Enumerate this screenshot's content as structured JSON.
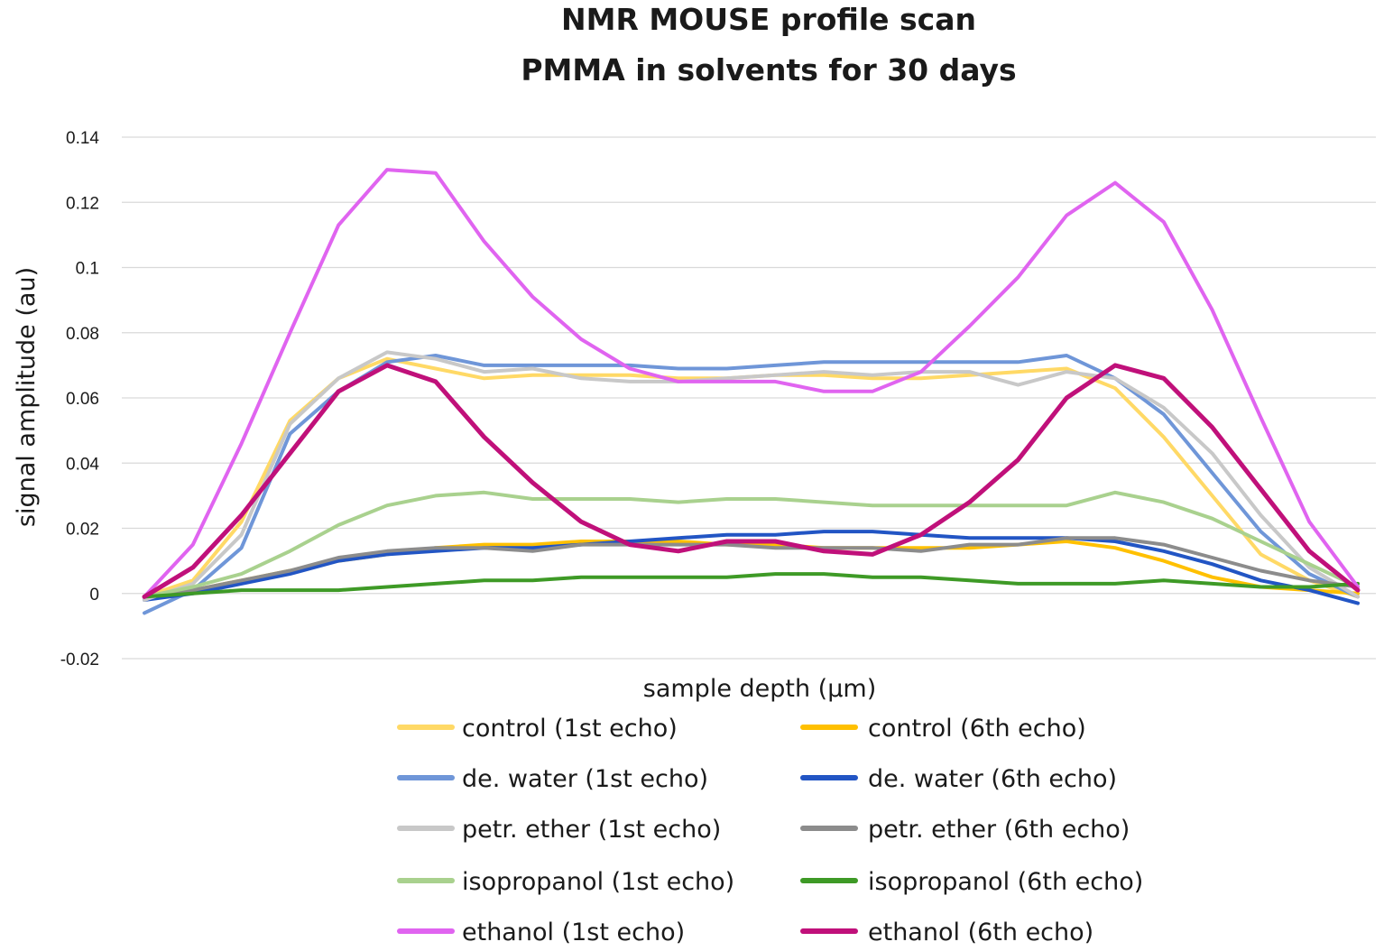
{
  "chart_data": {
    "type": "line",
    "title": [
      "NMR MOUSE profile scan",
      "PMMA in solvents for 30 days"
    ],
    "xlabel": "sample depth (μm)",
    "ylabel": "signal amplitude (au)",
    "ylim": [
      -0.02,
      0.14
    ],
    "yticks": [
      "0.14",
      "0.12",
      "0.1",
      "0.08",
      "0.06",
      "0.04",
      "0.02",
      "0",
      "-0.02"
    ],
    "ytick_values": [
      0.14,
      0.12,
      0.1,
      0.08,
      0.06,
      0.04,
      0.02,
      0,
      -0.02
    ],
    "x": [
      1,
      2,
      3,
      4,
      5,
      6,
      7,
      8,
      9,
      10,
      11,
      12,
      13,
      14,
      15,
      16,
      17,
      18,
      19,
      20,
      21,
      22,
      23,
      24,
      25,
      26
    ],
    "grid": true,
    "legend_position": "bottom",
    "series": [
      {
        "name": "control (1st echo)",
        "color": "#ffd966",
        "values": [
          -0.001,
          0.004,
          0.022,
          0.053,
          0.066,
          0.072,
          0.069,
          0.066,
          0.067,
          0.067,
          0.067,
          0.066,
          0.066,
          0.067,
          0.067,
          0.066,
          0.066,
          0.067,
          0.068,
          0.069,
          0.063,
          0.048,
          0.03,
          0.012,
          0.004,
          -0.001
        ]
      },
      {
        "name": "control (6th echo)",
        "color": "#ffc000",
        "values": [
          -0.001,
          0.001,
          0.004,
          0.007,
          0.01,
          0.012,
          0.014,
          0.015,
          0.015,
          0.016,
          0.016,
          0.016,
          0.015,
          0.015,
          0.014,
          0.014,
          0.014,
          0.014,
          0.015,
          0.016,
          0.014,
          0.01,
          0.005,
          0.002,
          0.001,
          0.0
        ]
      },
      {
        "name": "de. water (1st echo)",
        "color": "#6f96d8",
        "values": [
          -0.006,
          0.001,
          0.014,
          0.049,
          0.062,
          0.071,
          0.073,
          0.07,
          0.07,
          0.07,
          0.07,
          0.069,
          0.069,
          0.07,
          0.071,
          0.071,
          0.071,
          0.071,
          0.071,
          0.073,
          0.066,
          0.055,
          0.037,
          0.019,
          0.006,
          -0.001
        ]
      },
      {
        "name": "de. water (6th echo)",
        "color": "#2255c4",
        "values": [
          -0.002,
          0.0,
          0.003,
          0.006,
          0.01,
          0.012,
          0.013,
          0.014,
          0.014,
          0.015,
          0.016,
          0.017,
          0.018,
          0.018,
          0.019,
          0.019,
          0.018,
          0.017,
          0.017,
          0.017,
          0.016,
          0.013,
          0.009,
          0.004,
          0.001,
          -0.003
        ]
      },
      {
        "name": "petr. ether (1st echo)",
        "color": "#c8c8c8",
        "values": [
          -0.002,
          0.003,
          0.018,
          0.052,
          0.066,
          0.074,
          0.072,
          0.068,
          0.069,
          0.066,
          0.065,
          0.065,
          0.066,
          0.067,
          0.068,
          0.067,
          0.068,
          0.068,
          0.064,
          0.068,
          0.066,
          0.057,
          0.043,
          0.024,
          0.008,
          -0.001
        ]
      },
      {
        "name": "petr. ether (6th echo)",
        "color": "#8c8c8c",
        "values": [
          -0.001,
          0.001,
          0.004,
          0.007,
          0.011,
          0.013,
          0.014,
          0.014,
          0.013,
          0.015,
          0.015,
          0.015,
          0.015,
          0.014,
          0.014,
          0.014,
          0.013,
          0.015,
          0.015,
          0.017,
          0.017,
          0.015,
          0.011,
          0.007,
          0.004,
          0.002
        ]
      },
      {
        "name": "isopropanol (1st echo)",
        "color": "#a9d18e",
        "values": [
          -0.001,
          0.002,
          0.006,
          0.013,
          0.021,
          0.027,
          0.03,
          0.031,
          0.029,
          0.029,
          0.029,
          0.028,
          0.029,
          0.029,
          0.028,
          0.027,
          0.027,
          0.027,
          0.027,
          0.027,
          0.031,
          0.028,
          0.023,
          0.016,
          0.009,
          0.002
        ]
      },
      {
        "name": "isopropanol (6th echo)",
        "color": "#3e9a26",
        "values": [
          -0.001,
          -0.0,
          0.001,
          0.001,
          0.001,
          0.002,
          0.003,
          0.004,
          0.004,
          0.005,
          0.005,
          0.005,
          0.005,
          0.006,
          0.006,
          0.005,
          0.005,
          0.004,
          0.003,
          0.003,
          0.003,
          0.004,
          0.003,
          0.002,
          0.002,
          0.003
        ]
      },
      {
        "name": "ethanol (1st echo)",
        "color": "#e064f0",
        "values": [
          -0.001,
          0.015,
          0.046,
          0.08,
          0.113,
          0.13,
          0.129,
          0.108,
          0.091,
          0.078,
          0.069,
          0.065,
          0.065,
          0.065,
          0.062,
          0.062,
          0.068,
          0.082,
          0.097,
          0.116,
          0.126,
          0.114,
          0.087,
          0.054,
          0.022,
          0.002
        ]
      },
      {
        "name": "ethanol (6th echo)",
        "color": "#c0107a",
        "values": [
          -0.001,
          0.008,
          0.024,
          0.043,
          0.062,
          0.07,
          0.065,
          0.048,
          0.034,
          0.022,
          0.015,
          0.013,
          0.016,
          0.016,
          0.013,
          0.012,
          0.018,
          0.028,
          0.041,
          0.06,
          0.07,
          0.066,
          0.051,
          0.032,
          0.013,
          0.001
        ]
      }
    ]
  }
}
